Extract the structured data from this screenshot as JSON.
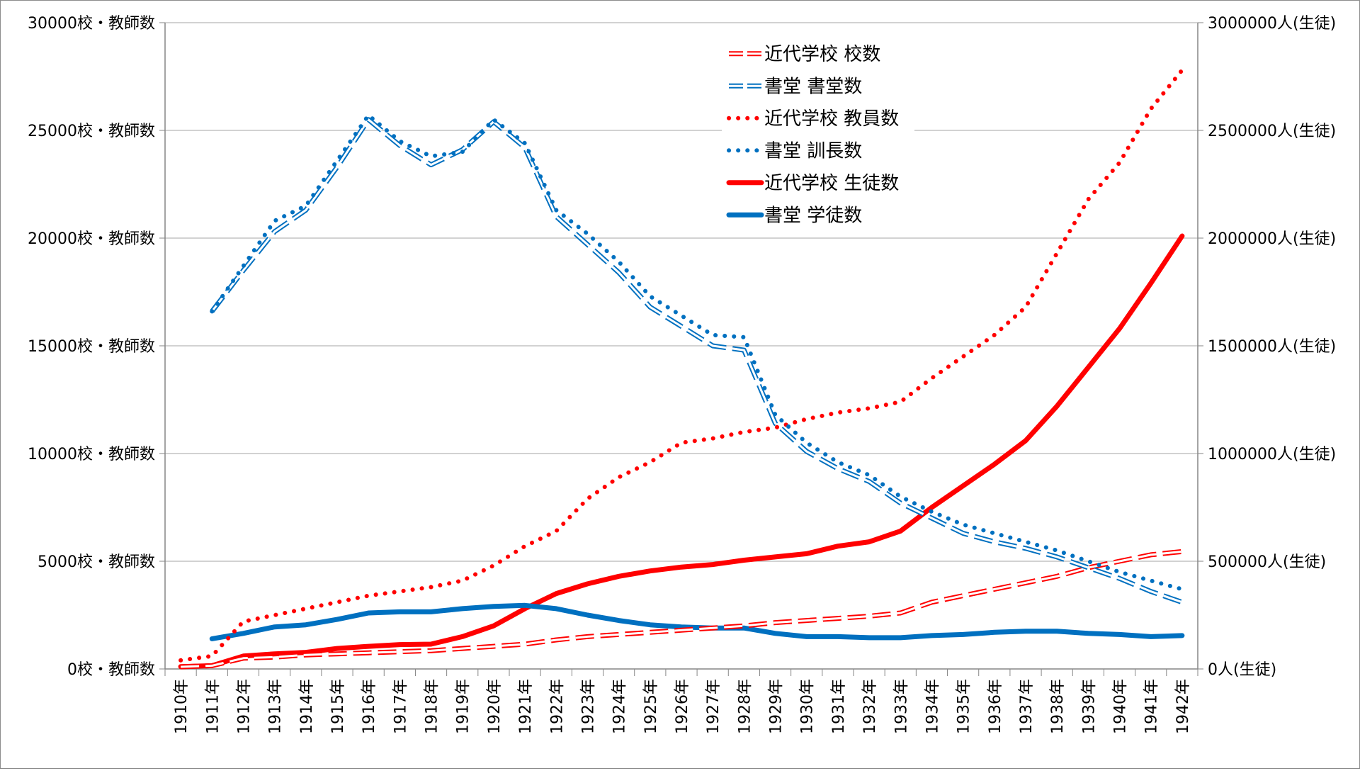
{
  "chart_data": {
    "type": "line",
    "x": [
      "1910年",
      "1911年",
      "1912年",
      "1913年",
      "1914年",
      "1915年",
      "1916年",
      "1917年",
      "1918年",
      "1919年",
      "1920年",
      "1921年",
      "1922年",
      "1923年",
      "1924年",
      "1925年",
      "1926年",
      "1927年",
      "1928年",
      "1929年",
      "1930年",
      "1931年",
      "1932年",
      "1933年",
      "1934年",
      "1935年",
      "1936年",
      "1937年",
      "1938年",
      "1939年",
      "1940年",
      "1941年",
      "1942年"
    ],
    "y_left_ticks": [
      "0校・教師数",
      "5000校・教師数",
      "10000校・教師数",
      "15000校・教師数",
      "20000校・教師数",
      "25000校・教師数",
      "30000校・教師数"
    ],
    "y_right_ticks": [
      "0人(生徒)",
      "500000人(生徒)",
      "1000000人(生徒)",
      "1500000人(生徒)",
      "2000000人(生徒)",
      "2500000人(生徒)",
      "3000000人(生徒)"
    ],
    "ylim_left": [
      0,
      30000
    ],
    "ylim_right": [
      0,
      3000000
    ],
    "grid": true,
    "legend_position": "top-center",
    "series": [
      {
        "name": "近代学校 校数",
        "axis": "left",
        "style": "dashed-hollow",
        "color": "#ff0000",
        "values": [
          100,
          150,
          500,
          550,
          650,
          700,
          750,
          800,
          850,
          950,
          1050,
          1150,
          1350,
          1500,
          1600,
          1700,
          1800,
          1900,
          2000,
          2150,
          2250,
          2350,
          2450,
          2600,
          3100,
          3400,
          3700,
          4000,
          4300,
          4700,
          5000,
          5300,
          5450
        ]
      },
      {
        "name": "書堂 書堂数",
        "axis": "left",
        "style": "dashed-hollow",
        "color": "#0070c0",
        "values": [
          null,
          16600,
          18500,
          20300,
          21300,
          23300,
          25500,
          24300,
          23400,
          24100,
          25400,
          24200,
          21000,
          19700,
          18400,
          16800,
          15900,
          15000,
          14800,
          11400,
          10100,
          9300,
          8700,
          7700,
          7000,
          6300,
          5900,
          5600,
          5200,
          4700,
          4200,
          3600,
          3100
        ]
      },
      {
        "name": "近代学校 教員数",
        "axis": "left",
        "style": "dotted",
        "color": "#ff0000",
        "values": [
          400,
          600,
          2200,
          2500,
          2800,
          3100,
          3400,
          3600,
          3800,
          4100,
          4800,
          5700,
          6400,
          7900,
          8900,
          9600,
          10500,
          10700,
          11000,
          11200,
          11600,
          11900,
          12100,
          12400,
          13500,
          14500,
          15500,
          16800,
          19300,
          21800,
          23500,
          26000,
          27800
        ]
      },
      {
        "name": "書堂 訓長数",
        "axis": "left",
        "style": "dotted",
        "color": "#0070c0",
        "values": [
          null,
          16600,
          18700,
          20800,
          21500,
          23600,
          25700,
          24500,
          23800,
          24000,
          25500,
          24400,
          21300,
          20200,
          18900,
          17300,
          16400,
          15500,
          15400,
          11800,
          10500,
          9600,
          9000,
          8000,
          7300,
          6700,
          6300,
          5900,
          5500,
          5000,
          4500,
          4100,
          3700
        ]
      },
      {
        "name": "近代学校 生徒数",
        "axis": "right",
        "style": "solid",
        "color": "#ff0000",
        "values": [
          11000,
          15000,
          60000,
          70000,
          77000,
          95000,
          105000,
          113000,
          115000,
          150000,
          200000,
          280000,
          350000,
          395000,
          430000,
          455000,
          473000,
          485000,
          505000,
          520000,
          535000,
          570000,
          590000,
          640000,
          750000,
          850000,
          950000,
          1060000,
          1220000,
          1400000,
          1580000,
          1790000,
          2010000
        ]
      },
      {
        "name": "書堂 学徒数",
        "axis": "right",
        "style": "solid",
        "color": "#0070c0",
        "values": [
          null,
          140000,
          165000,
          195000,
          205000,
          230000,
          260000,
          265000,
          265000,
          280000,
          290000,
          295000,
          280000,
          250000,
          225000,
          205000,
          195000,
          190000,
          190000,
          165000,
          150000,
          150000,
          145000,
          145000,
          155000,
          160000,
          170000,
          175000,
          175000,
          165000,
          160000,
          150000,
          155000
        ]
      }
    ]
  }
}
